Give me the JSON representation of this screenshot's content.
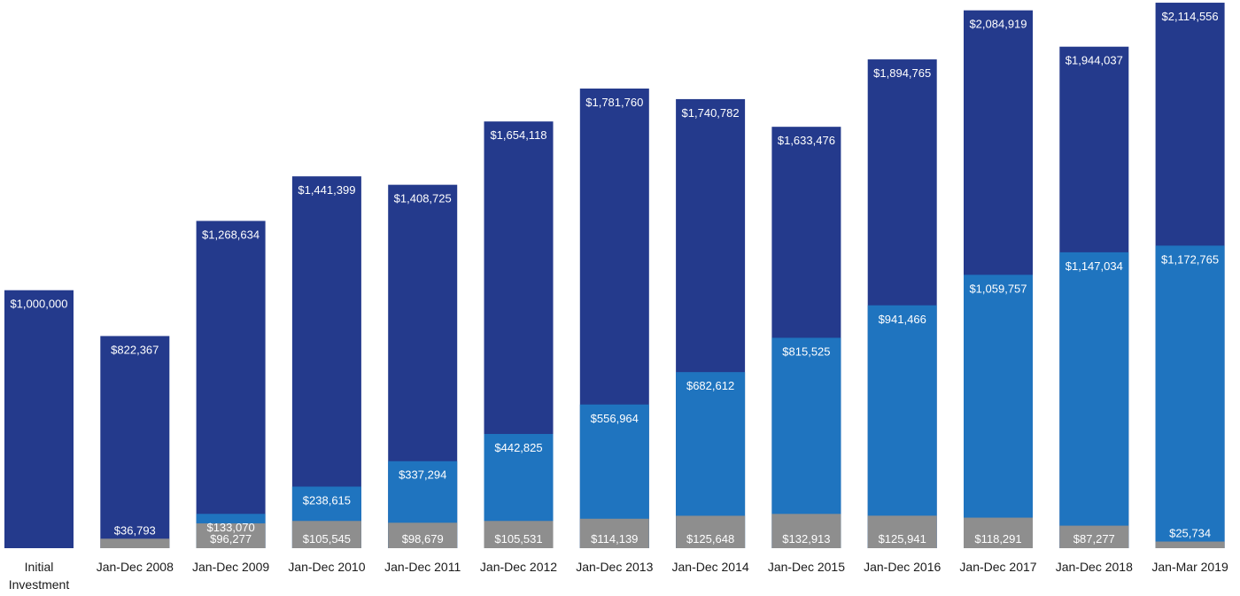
{
  "chart_data": {
    "type": "bar",
    "categories": [
      "Initial Investment",
      "Jan-Dec 2008",
      "Jan-Dec 2009",
      "Jan-Dec 2010",
      "Jan-Dec 2011",
      "Jan-Dec 2012",
      "Jan-Dec 2013",
      "Jan-Dec 2014",
      "Jan-Dec 2015",
      "Jan-Dec 2016",
      "Jan-Dec 2017",
      "Jan-Dec 2018",
      "Jan-Mar 2019"
    ],
    "category_lines": [
      [
        "Initial",
        "Investment"
      ],
      [
        "Jan-Dec 2008"
      ],
      [
        "Jan-Dec 2009"
      ],
      [
        "Jan-Dec 2010"
      ],
      [
        "Jan-Dec 2011"
      ],
      [
        "Jan-Dec 2012"
      ],
      [
        "Jan-Dec 2013"
      ],
      [
        "Jan-Dec 2014"
      ],
      [
        "Jan-Dec 2015"
      ],
      [
        "Jan-Dec 2016"
      ],
      [
        "Jan-Dec 2017"
      ],
      [
        "Jan-Dec 2018"
      ],
      [
        "Jan-Mar 2019"
      ]
    ],
    "series": [
      {
        "color": "#243a8c",
        "values": [
          1000000,
          822367,
          1268634,
          1441399,
          1408725,
          1654118,
          1781760,
          1740782,
          1633476,
          1894765,
          2084919,
          1944037,
          2114556
        ],
        "labels": [
          "$1,000,000",
          "$822,367",
          "$1,268,634",
          "$1,441,399",
          "$1,408,725",
          "$1,654,118",
          "$1,781,760",
          "$1,740,782",
          "$1,633,476",
          "$1,894,765",
          "$2,084,919",
          "$1,944,037",
          "$2,114,556"
        ]
      },
      {
        "color": "#1f74bf",
        "values": [
          null,
          null,
          133070,
          238615,
          337294,
          442825,
          556964,
          682612,
          815525,
          941466,
          1059757,
          1147034,
          1172765
        ],
        "labels": [
          null,
          null,
          "$133,070",
          "$238,615",
          "$337,294",
          "$442,825",
          "$556,964",
          "$682,612",
          "$815,525",
          "$941,466",
          "$1,059,757",
          "$1,147,034",
          "$1,172,765"
        ]
      },
      {
        "color": "#8e8e8e",
        "values": [
          null,
          36793,
          96277,
          105545,
          98679,
          105531,
          114139,
          125648,
          132913,
          125941,
          118291,
          87277,
          25734
        ],
        "labels": [
          null,
          "$36,793",
          "$96,277",
          "$105,545",
          "$98,679",
          "$105,531",
          "$114,139",
          "$125,648",
          "$132,913",
          "$125,941",
          "$118,291",
          "$87,277",
          "$25,734"
        ]
      }
    ],
    "ylim": [
      0,
      2125000
    ],
    "grid": false,
    "legend": "none"
  }
}
